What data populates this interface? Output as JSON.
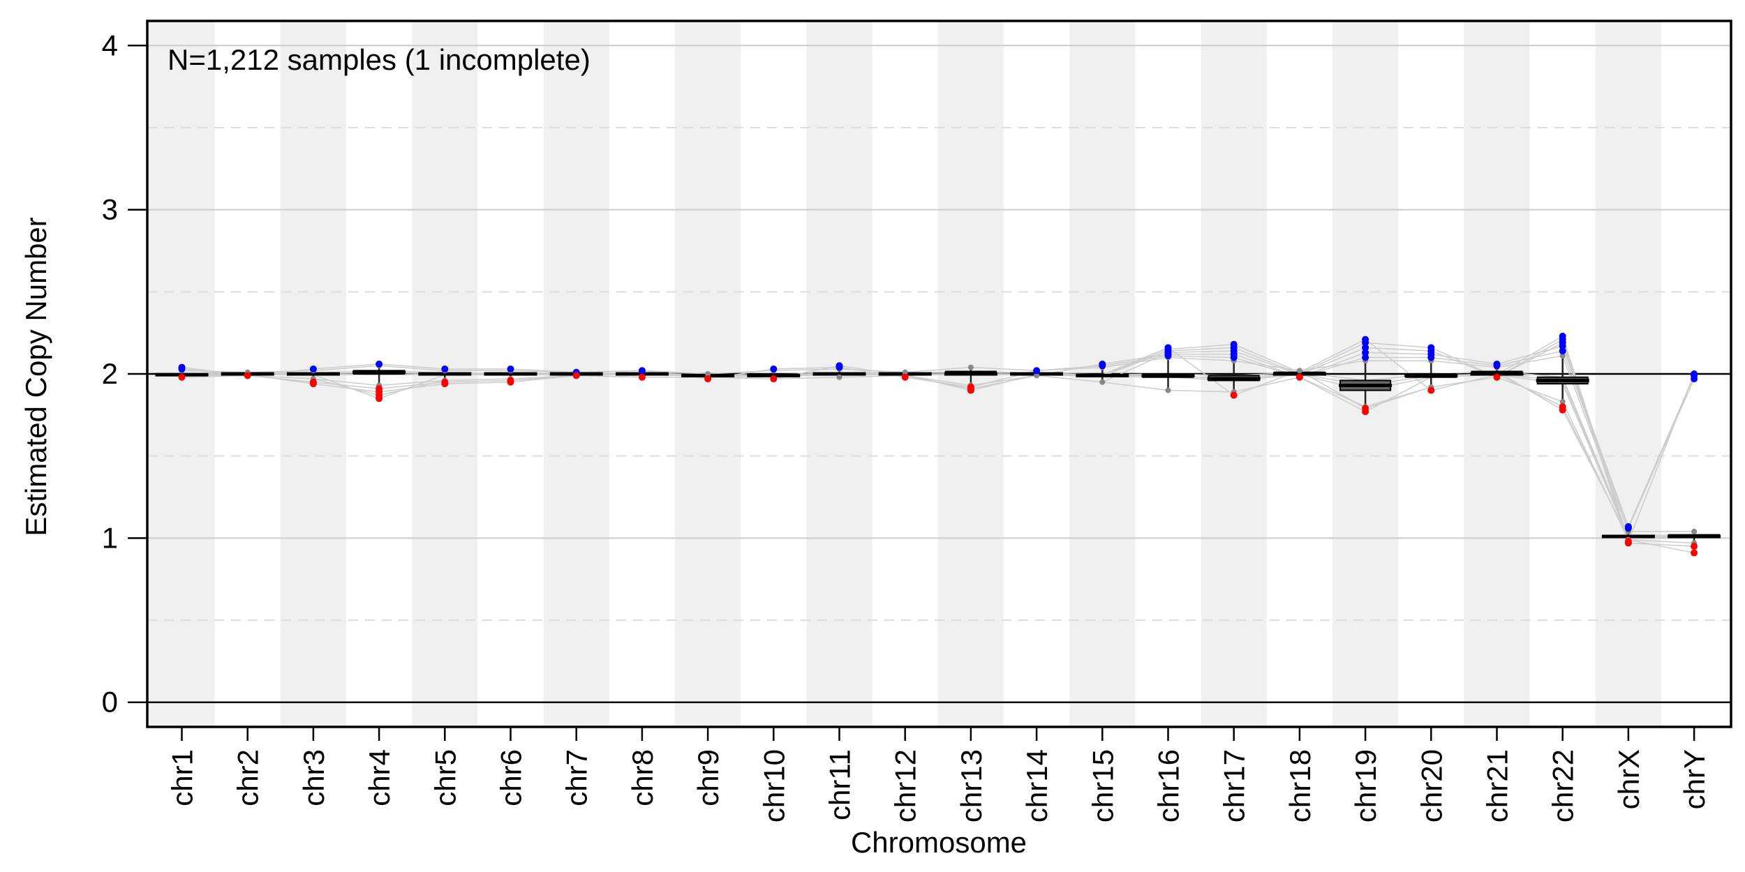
{
  "chart_data": {
    "type": "box",
    "annotation": "N=1,212 samples (1 incomplete)",
    "xlabel": "Chromosome",
    "ylabel": "Estimated Copy Number",
    "ylim": [
      -0.15,
      4.15
    ],
    "yticks": [
      0,
      1,
      2,
      3,
      4
    ],
    "minor_gridlines": [
      0.5,
      1.5,
      2.5,
      3.5
    ],
    "reference_lines": [
      0,
      2
    ],
    "background": "alternating grey chromosome bands",
    "colors": {
      "band": "#f0f0f0",
      "median": "#000000",
      "box_fill": "#666666",
      "high_outlier": "#0000ff",
      "low_outlier": "#ff0000",
      "other_point": "#888888",
      "sample_line": "#cccccc"
    },
    "categories": [
      "chr1",
      "chr2",
      "chr3",
      "chr4",
      "chr5",
      "chr6",
      "chr7",
      "chr8",
      "chr9",
      "chr10",
      "chr11",
      "chr12",
      "chr13",
      "chr14",
      "chr15",
      "chr16",
      "chr17",
      "chr18",
      "chr19",
      "chr20",
      "chr21",
      "chr22",
      "chrX",
      "chrY"
    ],
    "series": [
      {
        "values": [
          1.995,
          2.0,
          2.0,
          2.01,
          2.0,
          2.0,
          2.0,
          2.0,
          1.99,
          1.99,
          2.0,
          2.0,
          2.0,
          2.0,
          1.99,
          1.99,
          1.97,
          2.0,
          1.93,
          1.99,
          2.0,
          1.96,
          1.01,
          1.01
        ]
      }
    ],
    "boxes": [
      {
        "q1": 1.99,
        "q3": 2.0,
        "whisker_low": 1.98,
        "whisker_high": 2.02,
        "high_outliers": [
          2.03,
          2.04
        ],
        "low_outliers": [
          1.98
        ]
      },
      {
        "q1": 1.995,
        "q3": 2.005,
        "whisker_low": 1.99,
        "whisker_high": 2.01,
        "high_outliers": [],
        "low_outliers": [
          1.99
        ]
      },
      {
        "q1": 1.995,
        "q3": 2.005,
        "whisker_low": 1.97,
        "whisker_high": 2.02,
        "high_outliers": [
          2.03
        ],
        "low_outliers": [
          1.95,
          1.94
        ]
      },
      {
        "q1": 2.0,
        "q3": 2.02,
        "whisker_low": 1.93,
        "whisker_high": 2.05,
        "high_outliers": [
          2.06
        ],
        "low_outliers": [
          1.91,
          1.89,
          1.87,
          1.85
        ]
      },
      {
        "q1": 1.995,
        "q3": 2.005,
        "whisker_low": 1.96,
        "whisker_high": 2.02,
        "high_outliers": [
          2.03
        ],
        "low_outliers": [
          1.95,
          1.94
        ]
      },
      {
        "q1": 1.995,
        "q3": 2.005,
        "whisker_low": 1.97,
        "whisker_high": 2.02,
        "high_outliers": [
          2.03
        ],
        "low_outliers": [
          1.96,
          1.95
        ]
      },
      {
        "q1": 1.995,
        "q3": 2.005,
        "whisker_low": 1.99,
        "whisker_high": 2.01,
        "high_outliers": [
          2.01
        ],
        "low_outliers": [
          1.99
        ]
      },
      {
        "q1": 1.995,
        "q3": 2.005,
        "whisker_low": 1.98,
        "whisker_high": 2.02,
        "high_outliers": [
          2.02
        ],
        "low_outliers": [
          1.98
        ]
      },
      {
        "q1": 1.985,
        "q3": 1.995,
        "whisker_low": 1.98,
        "whisker_high": 2.0,
        "high_outliers": [],
        "low_outliers": [
          1.97
        ]
      },
      {
        "q1": 1.985,
        "q3": 1.995,
        "whisker_low": 1.97,
        "whisker_high": 2.02,
        "high_outliers": [
          2.03
        ],
        "low_outliers": [
          1.97
        ]
      },
      {
        "q1": 1.995,
        "q3": 2.005,
        "whisker_low": 1.98,
        "whisker_high": 2.03,
        "high_outliers": [
          2.04,
          2.05
        ],
        "low_outliers": []
      },
      {
        "q1": 1.995,
        "q3": 2.005,
        "whisker_low": 1.99,
        "whisker_high": 2.01,
        "high_outliers": [],
        "low_outliers": [
          1.98
        ]
      },
      {
        "q1": 1.995,
        "q3": 2.015,
        "whisker_low": 1.93,
        "whisker_high": 2.04,
        "high_outliers": [],
        "low_outliers": [
          1.92,
          1.91,
          1.9
        ]
      },
      {
        "q1": 1.995,
        "q3": 2.005,
        "whisker_low": 1.99,
        "whisker_high": 2.02,
        "high_outliers": [
          2.02
        ],
        "low_outliers": []
      },
      {
        "q1": 1.985,
        "q3": 1.995,
        "whisker_low": 1.95,
        "whisker_high": 2.04,
        "high_outliers": [
          2.05,
          2.06
        ],
        "low_outliers": []
      },
      {
        "q1": 1.98,
        "q3": 2.0,
        "whisker_low": 1.9,
        "whisker_high": 2.1,
        "high_outliers": [
          2.11,
          2.12,
          2.13,
          2.14,
          2.15,
          2.16
        ],
        "low_outliers": []
      },
      {
        "q1": 1.96,
        "q3": 1.99,
        "whisker_low": 1.89,
        "whisker_high": 2.08,
        "high_outliers": [
          2.1,
          2.12,
          2.14,
          2.16,
          2.18
        ],
        "low_outliers": [
          1.87
        ]
      },
      {
        "q1": 1.995,
        "q3": 2.01,
        "whisker_low": 1.98,
        "whisker_high": 2.02,
        "high_outliers": [],
        "low_outliers": [
          1.98
        ]
      },
      {
        "q1": 1.9,
        "q3": 1.96,
        "whisker_low": 1.8,
        "whisker_high": 2.08,
        "high_outliers": [
          2.1,
          2.13,
          2.16,
          2.19,
          2.21
        ],
        "low_outliers": [
          1.79,
          1.77
        ]
      },
      {
        "q1": 1.98,
        "q3": 2.0,
        "whisker_low": 1.92,
        "whisker_high": 2.08,
        "high_outliers": [
          2.1,
          2.12,
          2.14,
          2.16
        ],
        "low_outliers": [
          1.9
        ]
      },
      {
        "q1": 1.995,
        "q3": 2.015,
        "whisker_low": 1.98,
        "whisker_high": 2.04,
        "high_outliers": [
          2.05,
          2.06
        ],
        "low_outliers": [
          1.98
        ]
      },
      {
        "q1": 1.94,
        "q3": 1.98,
        "whisker_low": 1.83,
        "whisker_high": 2.11,
        "high_outliers": [
          2.14,
          2.17,
          2.19,
          2.21,
          2.23
        ],
        "low_outliers": [
          1.8,
          1.78
        ]
      },
      {
        "q1": 1.005,
        "q3": 1.015,
        "whisker_low": 0.99,
        "whisker_high": 1.04,
        "high_outliers": [
          1.06,
          1.07
        ],
        "low_outliers": [
          0.98,
          0.97
        ]
      },
      {
        "q1": 1.005,
        "q3": 1.02,
        "whisker_low": 0.97,
        "whisker_high": 1.04,
        "high_outliers": [
          1.97,
          1.99,
          2.0
        ],
        "low_outliers": [
          0.95,
          0.91
        ]
      }
    ]
  }
}
